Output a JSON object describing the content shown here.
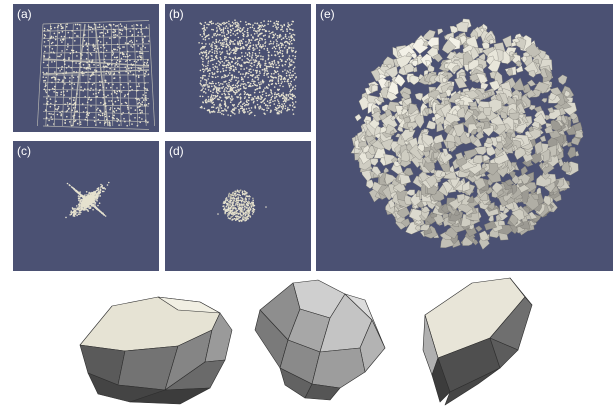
{
  "panels": [
    {
      "id": "a",
      "label": "(a)"
    },
    {
      "id": "b",
      "label": "(b)"
    },
    {
      "id": "c",
      "label": "(c)"
    },
    {
      "id": "d",
      "label": "(d)"
    },
    {
      "id": "e",
      "label": "(e)"
    }
  ],
  "colors": {
    "background": "#4b5173",
    "particle": "#e6e2cf",
    "grain_light": "#e7e4d5",
    "grain_dark": "#4f4f4f"
  }
}
